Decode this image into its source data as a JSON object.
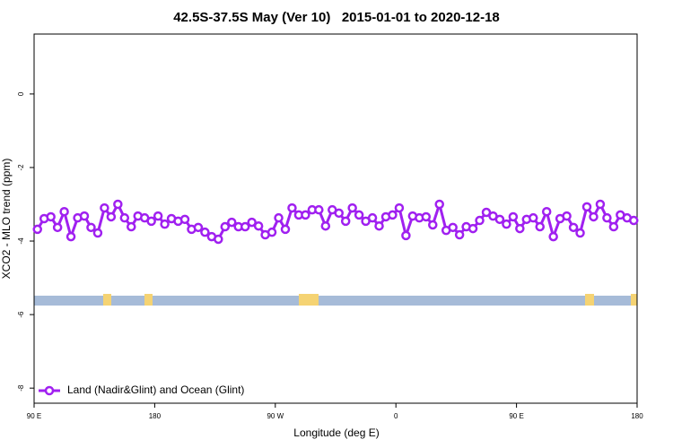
{
  "chart_data": {
    "type": "line",
    "title": "42.5S-37.5S May (Ver 10)   2015-01-01 to 2020-12-18",
    "x_label": "Longitude (deg E)",
    "y_label": "XCO2 - MLO trend (ppm)",
    "xlim": [
      90,
      540
    ],
    "xticks": [
      {
        "value": 90,
        "label": "90 E"
      },
      {
        "value": 180,
        "label": "180"
      },
      {
        "value": 270,
        "label": "90 W"
      },
      {
        "value": 360,
        "label": "0"
      },
      {
        "value": 450,
        "label": "90 E"
      },
      {
        "value": 540,
        "label": "180"
      }
    ],
    "ylim": [
      -8.41,
      1.63
    ],
    "yticks": [
      0,
      -2,
      -4,
      -6,
      -8
    ],
    "legend_position": "bottom-left",
    "x": [
      92.5,
      97.5,
      102.5,
      107.5,
      112.5,
      117.5,
      122.5,
      127.5,
      132.5,
      137.5,
      142.5,
      147.5,
      152.5,
      157.5,
      162.5,
      167.5,
      172.5,
      177.5,
      182.5,
      187.5,
      192.5,
      197.5,
      202.5,
      207.5,
      212.5,
      217.5,
      222.5,
      227.5,
      232.5,
      237.5,
      242.5,
      247.5,
      252.5,
      257.5,
      262.5,
      267.5,
      272.5,
      277.5,
      282.5,
      287.5,
      292.5,
      297.5,
      302.5,
      307.5,
      312.5,
      317.5,
      322.5,
      327.5,
      332.5,
      337.5,
      342.5,
      347.5,
      352.5,
      357.5,
      362.5,
      367.5,
      372.5,
      377.5,
      382.5,
      387.5,
      392.5,
      397.5,
      402.5,
      407.5,
      412.5,
      417.5,
      422.5,
      427.5,
      432.5,
      437.5,
      442.5,
      447.5,
      452.5,
      457.5,
      462.5,
      467.5,
      472.5,
      477.5,
      482.5,
      487.5,
      492.5,
      497.5,
      502.5,
      507.5,
      512.5,
      517.5,
      522.5,
      527.5,
      532.5,
      537.5
    ],
    "series": [
      {
        "name": "Land (Nadir&Glint) and Ocean (Glint)",
        "color": "#a020f0",
        "values": [
          -3.68,
          -3.39,
          -3.34,
          -3.63,
          -3.2,
          -3.88,
          -3.37,
          -3.32,
          -3.63,
          -3.78,
          -3.1,
          -3.34,
          -3.0,
          -3.37,
          -3.61,
          -3.32,
          -3.37,
          -3.46,
          -3.32,
          -3.54,
          -3.39,
          -3.46,
          -3.41,
          -3.68,
          -3.63,
          -3.76,
          -3.88,
          -3.95,
          -3.61,
          -3.49,
          -3.61,
          -3.61,
          -3.49,
          -3.59,
          -3.83,
          -3.76,
          -3.37,
          -3.68,
          -3.1,
          -3.29,
          -3.29,
          -3.15,
          -3.15,
          -3.59,
          -3.15,
          -3.24,
          -3.46,
          -3.1,
          -3.29,
          -3.46,
          -3.37,
          -3.59,
          -3.34,
          -3.29,
          -3.1,
          -3.85,
          -3.32,
          -3.37,
          -3.34,
          -3.56,
          -3.0,
          -3.71,
          -3.63,
          -3.83,
          -3.61,
          -3.66,
          -3.44,
          -3.22,
          -3.32,
          -3.41,
          -3.54,
          -3.34,
          -3.66,
          -3.41,
          -3.37,
          -3.61,
          -3.2,
          -3.88,
          -3.39,
          -3.32,
          -3.63,
          -3.78,
          -3.07,
          -3.34,
          -3.0,
          -3.37,
          -3.61,
          -3.29,
          -3.37,
          -3.44
        ]
      }
    ]
  }
}
